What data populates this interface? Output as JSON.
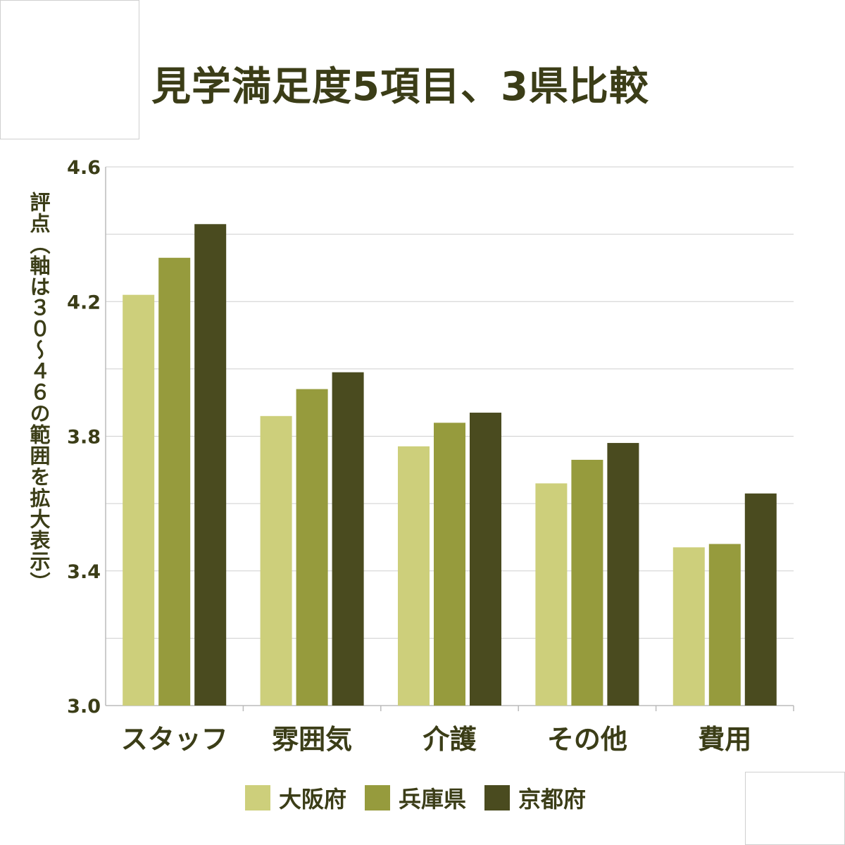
{
  "chart_data": {
    "type": "bar",
    "title": "見学満足度5項目、3県比較",
    "ylabel": "評点（軸は３０～４６の範囲を拡大表示）",
    "xlabel": "",
    "categories": [
      "スタッフ",
      "雰囲気",
      "介護",
      "その他",
      "費用"
    ],
    "series": [
      {
        "name": "大阪府",
        "color": "#cdcf7b",
        "values": [
          4.22,
          3.86,
          3.77,
          3.66,
          3.47
        ]
      },
      {
        "name": "兵庫県",
        "color": "#969b3d",
        "values": [
          4.33,
          3.94,
          3.84,
          3.73,
          3.48
        ]
      },
      {
        "name": "京都府",
        "color": "#4a4b1f",
        "values": [
          4.43,
          3.99,
          3.87,
          3.78,
          3.63
        ]
      }
    ],
    "ylim": [
      3.0,
      4.6
    ],
    "yticks": [
      "3.0",
      "3.4",
      "3.8",
      "4.2",
      "4.6"
    ],
    "grid": true,
    "legend_position": "bottom"
  }
}
